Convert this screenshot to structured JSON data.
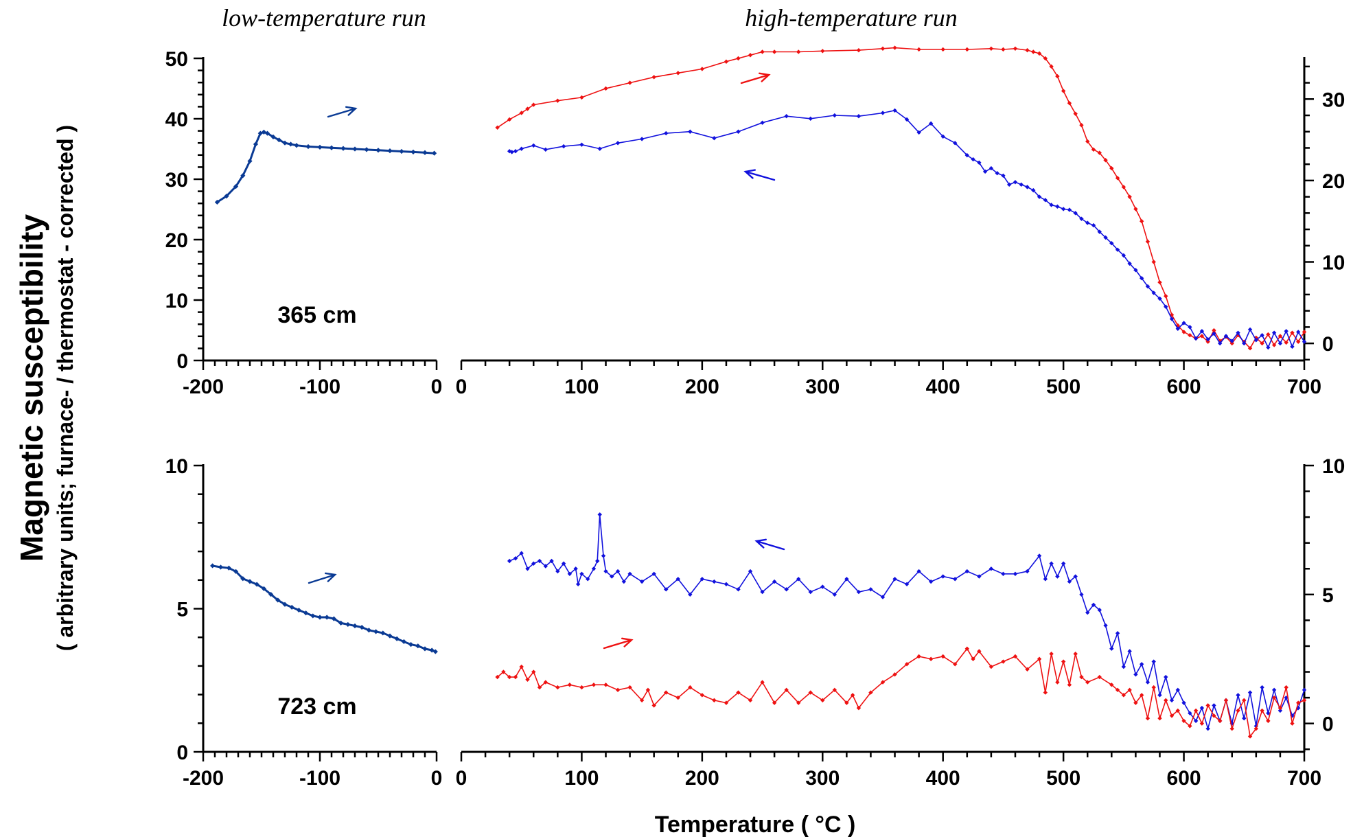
{
  "headings": {
    "low": "low-temperature run",
    "high": "high-temperature run"
  },
  "y_axis_label": {
    "main": "Magnetic susceptibility",
    "sub": "( arbitrary units; furnace- / thermostat - corrected )"
  },
  "x_axis_label": "Temperature ( °C )",
  "colors": {
    "low_temp": "#0a3a94",
    "heating": "#ee1111",
    "cooling": "#1111dd"
  },
  "chart_data": [
    {
      "type": "line",
      "panel": "top",
      "sample": "365 cm",
      "low_axis": {
        "xlim": [
          -200,
          0
        ],
        "xticks": [
          "-200",
          "-100",
          "0"
        ],
        "ylim": [
          0,
          50
        ],
        "yticks": [
          "0",
          "10",
          "20",
          "30",
          "40",
          "50"
        ]
      },
      "high_axis": {
        "xlim": [
          0,
          700
        ],
        "xticks": [
          "0",
          "100",
          "200",
          "300",
          "400",
          "500",
          "600",
          "700"
        ],
        "ylim": [
          -2.1,
          35
        ],
        "yticks": [
          "0",
          "10",
          "20",
          "30"
        ]
      },
      "series": [
        {
          "role": "low-temperature run",
          "axis": "low",
          "x": [
            -188,
            -180,
            -172,
            -166,
            -160,
            -155,
            -151,
            -148,
            -145,
            -140,
            -135,
            -130,
            -125,
            -120,
            -110,
            -100,
            -90,
            -80,
            -70,
            -60,
            -50,
            -40,
            -30,
            -20,
            -10,
            -2
          ],
          "y": [
            26.2,
            27.2,
            28.8,
            30.6,
            33.0,
            35.8,
            37.6,
            37.8,
            37.6,
            37.0,
            36.5,
            36.0,
            35.8,
            35.6,
            35.4,
            35.3,
            35.2,
            35.1,
            35.0,
            34.9,
            34.8,
            34.7,
            34.6,
            34.5,
            34.4,
            34.3
          ]
        },
        {
          "role": "heating",
          "axis": "high",
          "x": [
            30,
            40,
            50,
            55,
            60,
            80,
            100,
            120,
            140,
            160,
            180,
            200,
            220,
            230,
            240,
            250,
            260,
            280,
            300,
            330,
            350,
            360,
            380,
            400,
            420,
            440,
            450,
            460,
            470,
            475,
            480,
            485,
            490,
            495,
            500,
            505,
            510,
            515,
            520,
            525,
            530,
            535,
            540,
            545,
            550,
            555,
            560,
            565,
            570,
            575,
            580,
            585,
            590,
            595,
            600,
            605,
            610,
            615,
            620,
            625,
            630,
            635,
            640,
            645,
            650,
            655,
            660,
            665,
            670,
            675,
            680,
            685,
            690,
            695,
            700
          ],
          "y": [
            26.5,
            27.5,
            28.3,
            28.8,
            29.3,
            29.8,
            30.2,
            31.3,
            32.0,
            32.7,
            33.2,
            33.7,
            34.6,
            35.0,
            35.4,
            35.8,
            35.8,
            35.8,
            35.9,
            36.0,
            36.2,
            36.3,
            36.1,
            36.1,
            36.1,
            36.2,
            36.1,
            36.2,
            36.0,
            35.8,
            35.6,
            35.0,
            34.0,
            32.8,
            31.0,
            29.5,
            28.2,
            26.8,
            24.8,
            23.8,
            23.4,
            22.5,
            21.5,
            20.3,
            19.2,
            18.0,
            16.5,
            15.0,
            12.5,
            10.0,
            7.5,
            5.8,
            3.5,
            2.2,
            1.4,
            1.0,
            0.6,
            0.9,
            0.2,
            1.6,
            0.3,
            0.8,
            0.0,
            1.0,
            0.2,
            -0.6,
            0.7,
            0.0,
            1.1,
            -0.2,
            0.9,
            0.1,
            1.3,
            0.2,
            1.4
          ]
        },
        {
          "role": "cooling",
          "axis": "high",
          "x": [
            700,
            695,
            690,
            685,
            680,
            675,
            670,
            665,
            660,
            655,
            650,
            645,
            640,
            635,
            630,
            625,
            620,
            615,
            610,
            605,
            600,
            595,
            590,
            585,
            580,
            575,
            570,
            565,
            560,
            555,
            550,
            545,
            540,
            535,
            530,
            525,
            520,
            515,
            510,
            505,
            500,
            495,
            490,
            485,
            480,
            475,
            470,
            465,
            460,
            455,
            450,
            445,
            440,
            435,
            430,
            425,
            420,
            410,
            400,
            390,
            380,
            370,
            360,
            350,
            330,
            310,
            290,
            270,
            250,
            230,
            210,
            190,
            170,
            150,
            130,
            115,
            100,
            85,
            70,
            60,
            50,
            45,
            42,
            40
          ],
          "y": [
            0.2,
            1.4,
            -0.4,
            1.5,
            0.0,
            1.3,
            -0.5,
            1.0,
            0.4,
            1.7,
            0.0,
            1.3,
            0.3,
            0.9,
            0.0,
            1.2,
            0.5,
            1.5,
            0.6,
            2.0,
            2.5,
            1.8,
            3.0,
            4.5,
            5.5,
            6.2,
            7.0,
            8.0,
            9.0,
            9.8,
            10.8,
            11.5,
            12.3,
            13.0,
            13.7,
            14.5,
            14.8,
            15.3,
            16.0,
            16.4,
            16.5,
            16.8,
            17.0,
            17.6,
            18.0,
            18.8,
            19.2,
            19.5,
            19.8,
            19.5,
            20.6,
            20.9,
            21.5,
            21.1,
            22.2,
            22.6,
            23.1,
            24.6,
            25.4,
            27.0,
            25.9,
            27.5,
            28.6,
            28.3,
            27.9,
            28.0,
            27.6,
            27.9,
            27.1,
            26.0,
            25.2,
            26.0,
            25.8,
            25.1,
            24.6,
            23.9,
            24.4,
            24.2,
            23.8,
            24.3,
            23.9,
            23.6,
            23.5,
            23.6
          ]
        }
      ],
      "annotations": [
        {
          "type": "arrow",
          "series": "low-temperature run",
          "direction": "right"
        },
        {
          "type": "arrow",
          "series": "heating",
          "direction": "right"
        },
        {
          "type": "arrow",
          "series": "cooling",
          "direction": "left"
        }
      ]
    },
    {
      "type": "line",
      "panel": "bottom",
      "sample": "723 cm",
      "low_axis": {
        "xlim": [
          -200,
          0
        ],
        "xticks": [
          "-200",
          "-100",
          "0"
        ],
        "ylim": [
          0,
          10
        ],
        "yticks": [
          "0",
          "5",
          "10"
        ]
      },
      "high_axis": {
        "xlim": [
          0,
          700
        ],
        "xticks": [
          "0",
          "100",
          "200",
          "300",
          "400",
          "500",
          "600",
          "700"
        ],
        "ylim": [
          -1.1,
          10
        ],
        "yticks": [
          "0",
          "5",
          "10"
        ]
      },
      "series": [
        {
          "role": "low-temperature run",
          "axis": "low",
          "x": [
            -192,
            -185,
            -178,
            -172,
            -166,
            -160,
            -154,
            -148,
            -142,
            -136,
            -130,
            -124,
            -118,
            -112,
            -106,
            -100,
            -94,
            -88,
            -82,
            -76,
            -70,
            -64,
            -58,
            -52,
            -46,
            -40,
            -34,
            -28,
            -22,
            -16,
            -10,
            -4,
            -1
          ],
          "y": [
            6.5,
            6.45,
            6.42,
            6.3,
            6.05,
            5.95,
            5.85,
            5.7,
            5.5,
            5.3,
            5.15,
            5.05,
            4.95,
            4.85,
            4.75,
            4.7,
            4.7,
            4.65,
            4.5,
            4.45,
            4.4,
            4.35,
            4.25,
            4.2,
            4.15,
            4.05,
            3.95,
            3.85,
            3.75,
            3.7,
            3.6,
            3.55,
            3.5
          ]
        },
        {
          "role": "cooling",
          "axis": "high",
          "x": [
            40,
            45,
            50,
            55,
            60,
            65,
            70,
            75,
            80,
            85,
            90,
            95,
            97,
            100,
            105,
            110,
            113,
            115,
            118,
            120,
            125,
            130,
            135,
            140,
            150,
            160,
            170,
            180,
            190,
            200,
            210,
            220,
            230,
            240,
            250,
            260,
            270,
            280,
            290,
            300,
            310,
            320,
            330,
            340,
            350,
            360,
            370,
            380,
            390,
            400,
            410,
            420,
            430,
            440,
            450,
            460,
            470,
            480,
            485,
            490,
            495,
            500,
            505,
            510,
            515,
            520,
            525,
            530,
            535,
            540,
            545,
            550,
            555,
            560,
            565,
            570,
            575,
            580,
            585,
            590,
            595,
            600,
            605,
            610,
            615,
            620,
            625,
            630,
            635,
            640,
            645,
            650,
            655,
            660,
            665,
            670,
            675,
            680,
            685,
            690,
            695,
            700
          ],
          "y": [
            6.3,
            6.4,
            6.6,
            6.0,
            6.2,
            6.3,
            6.1,
            6.3,
            5.9,
            6.2,
            5.8,
            6.0,
            5.4,
            5.8,
            5.6,
            6.0,
            6.3,
            8.1,
            6.5,
            5.9,
            5.7,
            5.9,
            5.5,
            5.8,
            5.5,
            5.8,
            5.2,
            5.6,
            5.0,
            5.6,
            5.5,
            5.4,
            5.2,
            5.9,
            5.1,
            5.5,
            5.2,
            5.6,
            5.1,
            5.3,
            5.0,
            5.6,
            5.1,
            5.2,
            4.9,
            5.6,
            5.4,
            5.9,
            5.5,
            5.7,
            5.6,
            5.9,
            5.7,
            6.0,
            5.8,
            5.8,
            5.9,
            6.5,
            5.6,
            6.2,
            5.7,
            6.2,
            5.5,
            5.7,
            5.0,
            4.3,
            4.6,
            4.4,
            3.8,
            2.9,
            3.5,
            2.2,
            2.8,
            1.9,
            2.3,
            1.6,
            2.4,
            1.1,
            1.8,
            0.9,
            1.3,
            0.8,
            0.4,
            0.1,
            0.6,
            -0.2,
            0.7,
            0.1,
            0.9,
            0.0,
            1.1,
            0.2,
            1.2,
            -0.1,
            1.4,
            0.4,
            1.3,
            0.5,
            1.0,
            0.3,
            0.6,
            1.3
          ]
        },
        {
          "role": "heating",
          "axis": "high",
          "x": [
            30,
            35,
            40,
            45,
            50,
            55,
            60,
            65,
            70,
            80,
            90,
            100,
            110,
            120,
            130,
            140,
            150,
            155,
            160,
            170,
            180,
            190,
            200,
            210,
            220,
            230,
            240,
            250,
            260,
            270,
            280,
            290,
            300,
            310,
            320,
            325,
            330,
            340,
            350,
            360,
            370,
            380,
            390,
            400,
            410,
            420,
            425,
            430,
            440,
            450,
            460,
            470,
            480,
            485,
            490,
            495,
            500,
            505,
            510,
            515,
            520,
            530,
            540,
            545,
            550,
            555,
            560,
            565,
            570,
            575,
            580,
            585,
            590,
            595,
            600,
            605,
            610,
            615,
            620,
            625,
            630,
            635,
            640,
            645,
            650,
            655,
            660,
            665,
            670,
            675,
            680,
            685,
            690,
            695,
            700
          ],
          "y": [
            1.8,
            2.0,
            1.8,
            1.8,
            2.2,
            1.7,
            2.0,
            1.4,
            1.6,
            1.4,
            1.5,
            1.4,
            1.5,
            1.5,
            1.3,
            1.4,
            0.9,
            1.3,
            0.7,
            1.2,
            1.0,
            1.4,
            1.1,
            0.9,
            0.8,
            1.2,
            0.9,
            1.6,
            0.8,
            1.3,
            0.8,
            1.2,
            0.9,
            1.3,
            0.8,
            1.1,
            0.6,
            1.2,
            1.6,
            1.9,
            2.3,
            2.6,
            2.5,
            2.6,
            2.3,
            2.9,
            2.5,
            2.8,
            2.2,
            2.4,
            2.6,
            2.1,
            2.5,
            1.2,
            2.7,
            1.6,
            2.4,
            1.5,
            2.7,
            1.8,
            1.6,
            1.8,
            1.5,
            1.3,
            1.1,
            1.3,
            0.8,
            1.1,
            0.2,
            1.4,
            0.2,
            0.9,
            0.3,
            0.5,
            0.1,
            -0.1,
            0.5,
            0.0,
            0.7,
            0.3,
            0.1,
            0.9,
            -0.2,
            0.5,
            0.9,
            -0.5,
            -0.2,
            0.5,
            0.1,
            1.0,
            0.6,
            1.4,
            0.0,
            0.8,
            0.9
          ]
        }
      ],
      "annotations": [
        {
          "type": "arrow",
          "series": "low-temperature run",
          "direction": "right"
        },
        {
          "type": "arrow",
          "series": "cooling",
          "direction": "left"
        },
        {
          "type": "arrow",
          "series": "heating",
          "direction": "right"
        }
      ]
    }
  ]
}
